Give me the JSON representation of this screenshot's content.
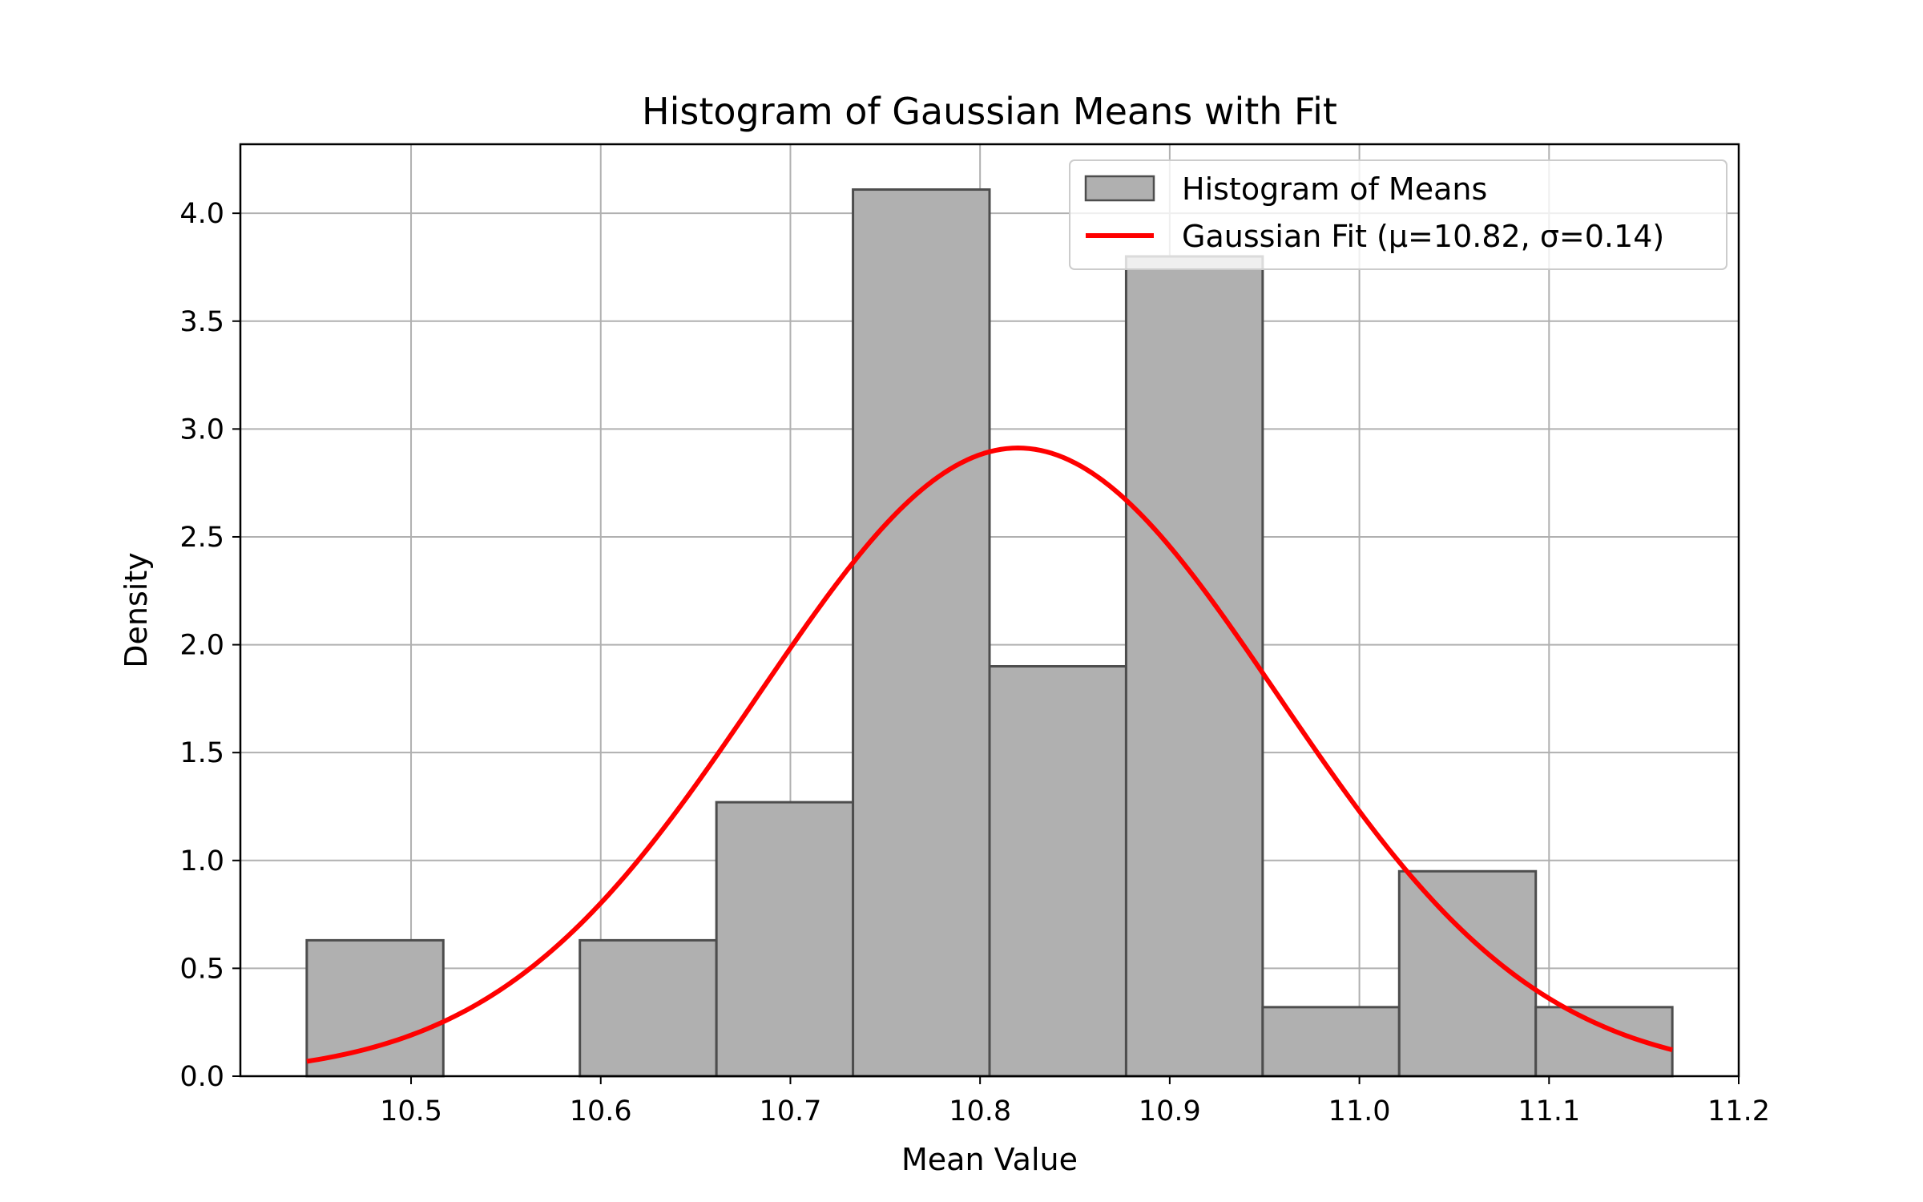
{
  "chart_data": {
    "type": "bar",
    "title": "Histogram of Gaussian Means with Fit",
    "xlabel": "Mean Value",
    "ylabel": "Density",
    "xlim": [
      10.41,
      11.2
    ],
    "ylim": [
      0,
      4.32
    ],
    "xticks": [
      "10.5",
      "10.6",
      "10.7",
      "10.8",
      "10.9",
      "11.0",
      "11.1",
      "11.2"
    ],
    "yticks": [
      "0.0",
      "0.5",
      "1.0",
      "1.5",
      "2.0",
      "2.5",
      "3.0",
      "3.5",
      "4.0"
    ],
    "grid": true,
    "legend_position": "top-right",
    "series": [
      {
        "name": "Histogram of Means",
        "kind": "histogram",
        "color": "#b0b0b0",
        "edge_color": "#4d4d4d",
        "bins": [
          {
            "x0": 10.445,
            "x1": 10.517,
            "value": 0.63
          },
          {
            "x0": 10.517,
            "x1": 10.589,
            "value": 0.0
          },
          {
            "x0": 10.589,
            "x1": 10.661,
            "value": 0.63
          },
          {
            "x0": 10.661,
            "x1": 10.733,
            "value": 1.27
          },
          {
            "x0": 10.733,
            "x1": 10.805,
            "value": 4.11
          },
          {
            "x0": 10.805,
            "x1": 10.877,
            "value": 1.9
          },
          {
            "x0": 10.877,
            "x1": 10.949,
            "value": 3.8
          },
          {
            "x0": 10.949,
            "x1": 11.021,
            "value": 0.32
          },
          {
            "x0": 11.021,
            "x1": 11.093,
            "value": 0.95
          },
          {
            "x0": 11.093,
            "x1": 11.165,
            "value": 0.32
          }
        ]
      },
      {
        "name": "Gaussian Fit (μ=10.82, σ=0.14)",
        "kind": "line",
        "color": "#ff0000",
        "mu": 10.82,
        "sigma": 0.137,
        "x_range": [
          10.445,
          11.165
        ]
      }
    ]
  }
}
